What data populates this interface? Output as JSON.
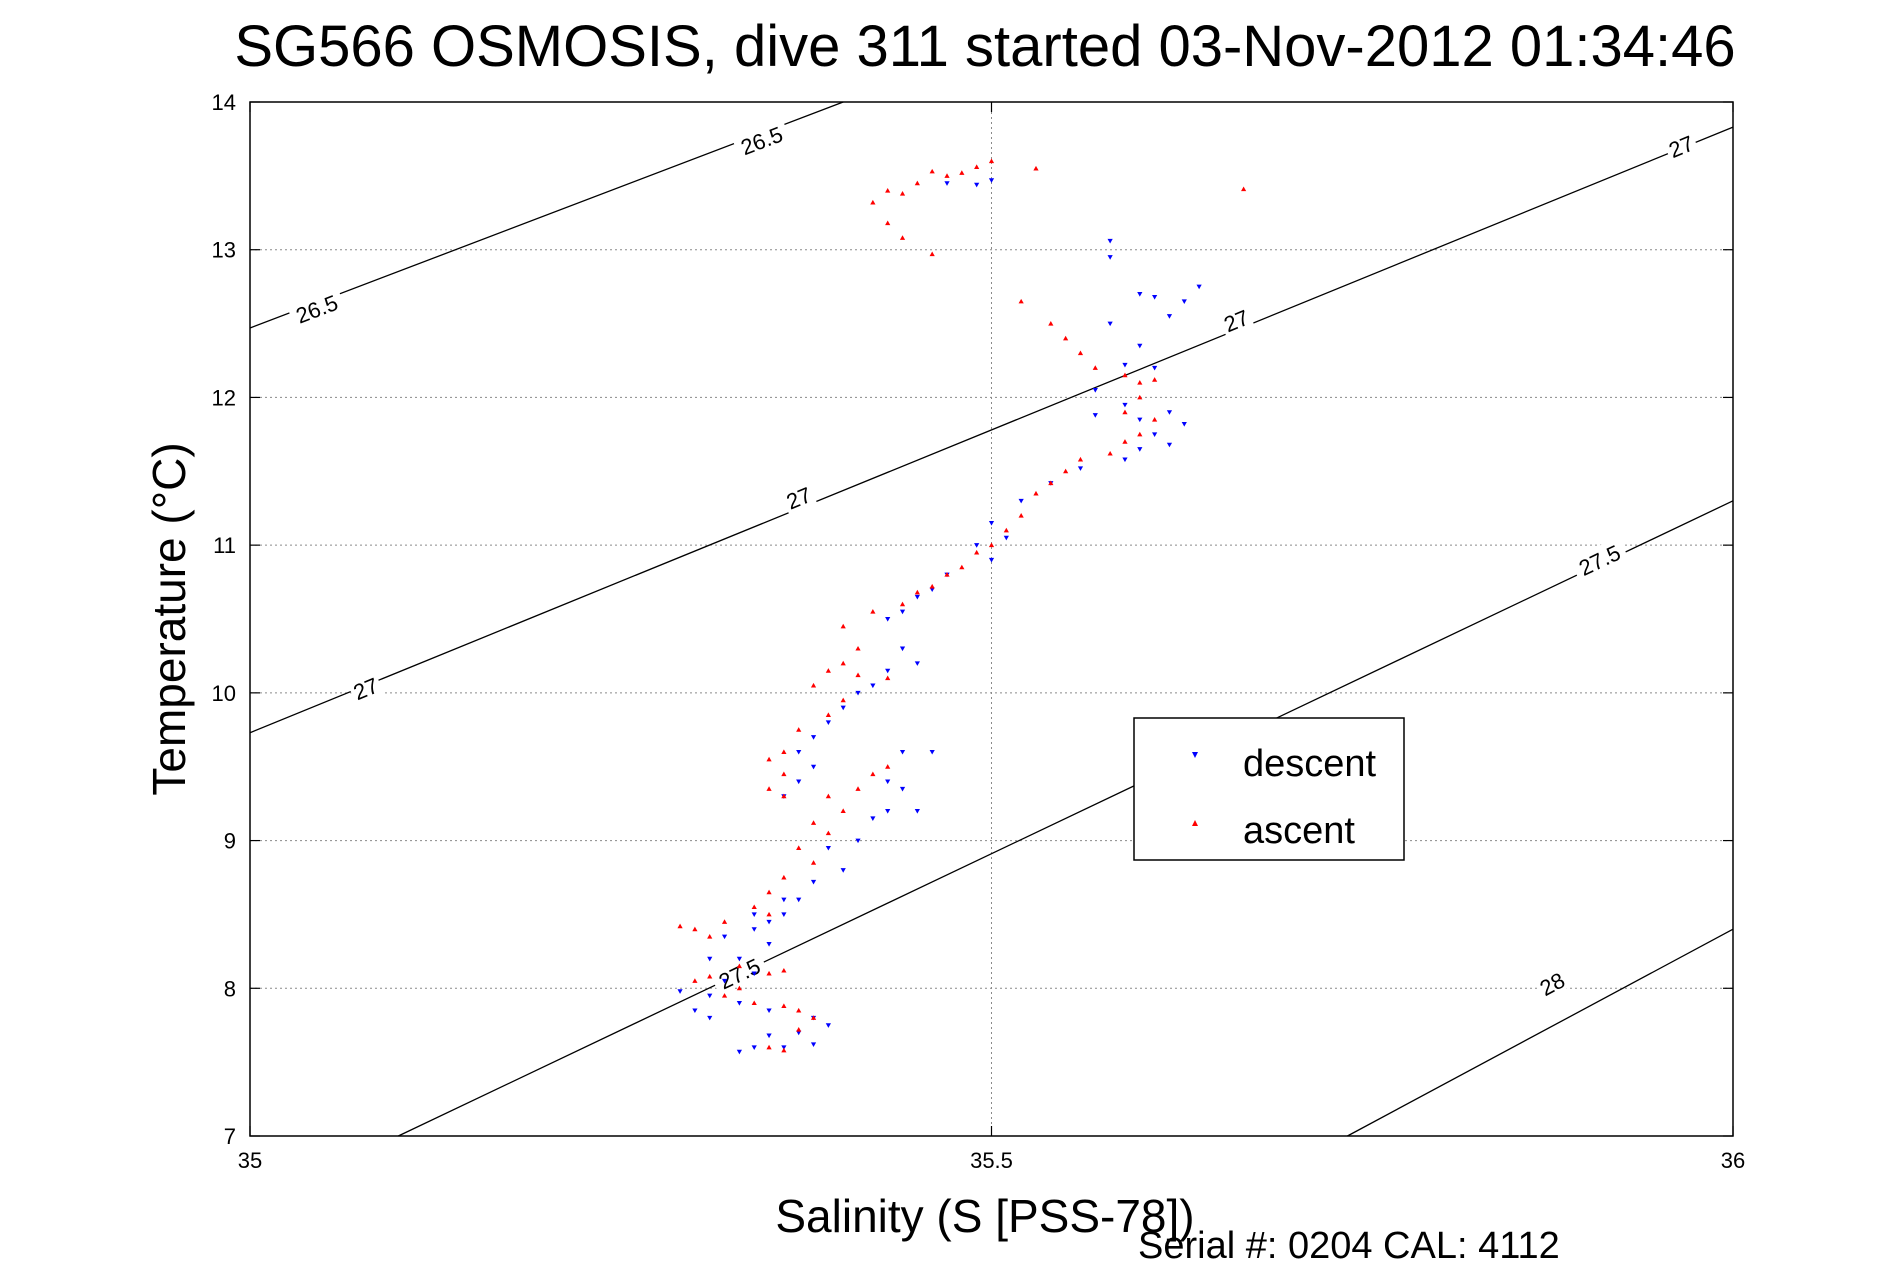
{
  "chart_data": {
    "type": "scatter",
    "title": "SG566 OSMOSIS, dive 311 started 03-Nov-2012 01:34:46",
    "xlabel": "Salinity (S [PSS-78])",
    "ylabel": "Temperature (°C)",
    "xlim": [
      35,
      36
    ],
    "ylim": [
      7,
      14
    ],
    "xticks": [
      35,
      35.5,
      36
    ],
    "xtick_labels": [
      "35",
      "35.5",
      "36"
    ],
    "yticks": [
      7,
      8,
      9,
      10,
      11,
      12,
      13,
      14
    ],
    "ytick_labels": [
      "7",
      "8",
      "9",
      "10",
      "11",
      "12",
      "13",
      "14"
    ],
    "grid": true,
    "legend_position": "center-right",
    "footer": "Serial #: 0204  CAL: 4112",
    "colors": {
      "descent": "#0000ff",
      "ascent": "#ff0000",
      "contour": "#000000",
      "grid": "#b0b0b0"
    },
    "contours": [
      {
        "level": "26.5",
        "points": [
          [
            35.0,
            12.47
          ],
          [
            35.4,
            14.0
          ]
        ],
        "labels": [
          {
            "text": "26.5",
            "x": 35.045,
            "y": 12.6
          },
          {
            "text": "26.5",
            "x": 35.345,
            "y": 13.74
          }
        ]
      },
      {
        "level": "27",
        "points": [
          [
            35.0,
            9.73
          ],
          [
            36.0,
            13.83
          ]
        ],
        "labels": [
          {
            "text": "27",
            "x": 35.078,
            "y": 10.03
          },
          {
            "text": "27",
            "x": 35.37,
            "y": 11.32
          },
          {
            "text": "27",
            "x": 35.665,
            "y": 12.52
          },
          {
            "text": "27",
            "x": 35.965,
            "y": 13.7
          }
        ]
      },
      {
        "level": "27.5",
        "points": [
          [
            35.1,
            7.0
          ],
          [
            36.0,
            11.3
          ]
        ],
        "labels": [
          {
            "text": "27.5",
            "x": 35.33,
            "y": 8.1
          },
          {
            "text": "27.5",
            "x": 35.91,
            "y": 10.9
          }
        ]
      },
      {
        "level": "28",
        "points": [
          [
            35.74,
            7.0
          ],
          [
            36.0,
            8.4
          ]
        ],
        "labels": [
          {
            "text": "28",
            "x": 35.878,
            "y": 8.03
          }
        ]
      }
    ],
    "series": [
      {
        "name": "descent",
        "marker": "triangle-down",
        "color": "#0000ff",
        "points": [
          [
            35.47,
            13.45
          ],
          [
            35.49,
            13.44
          ],
          [
            35.5,
            13.47
          ],
          [
            35.58,
            13.06
          ],
          [
            35.58,
            12.95
          ],
          [
            35.6,
            12.7
          ],
          [
            35.61,
            12.68
          ],
          [
            35.63,
            12.65
          ],
          [
            35.64,
            12.75
          ],
          [
            35.62,
            12.55
          ],
          [
            35.58,
            12.5
          ],
          [
            35.6,
            12.35
          ],
          [
            35.59,
            12.22
          ],
          [
            35.61,
            12.2
          ],
          [
            35.57,
            12.05
          ],
          [
            35.59,
            11.95
          ],
          [
            35.57,
            11.88
          ],
          [
            35.6,
            11.85
          ],
          [
            35.62,
            11.9
          ],
          [
            35.63,
            11.82
          ],
          [
            35.61,
            11.75
          ],
          [
            35.6,
            11.65
          ],
          [
            35.62,
            11.68
          ],
          [
            35.59,
            11.58
          ],
          [
            35.56,
            11.52
          ],
          [
            35.54,
            11.42
          ],
          [
            35.52,
            11.3
          ],
          [
            35.5,
            11.15
          ],
          [
            35.51,
            11.05
          ],
          [
            35.49,
            11.0
          ],
          [
            35.5,
            10.9
          ],
          [
            35.47,
            10.8
          ],
          [
            35.46,
            10.7
          ],
          [
            35.45,
            10.65
          ],
          [
            35.44,
            10.55
          ],
          [
            35.43,
            10.5
          ],
          [
            35.44,
            10.3
          ],
          [
            35.45,
            10.2
          ],
          [
            35.43,
            10.15
          ],
          [
            35.42,
            10.05
          ],
          [
            35.41,
            10.0
          ],
          [
            35.4,
            9.9
          ],
          [
            35.39,
            9.8
          ],
          [
            35.38,
            9.7
          ],
          [
            35.37,
            9.6
          ],
          [
            35.38,
            9.5
          ],
          [
            35.37,
            9.4
          ],
          [
            35.36,
            9.3
          ],
          [
            35.44,
            9.6
          ],
          [
            35.46,
            9.6
          ],
          [
            35.43,
            9.4
          ],
          [
            35.44,
            9.35
          ],
          [
            35.45,
            9.2
          ],
          [
            35.43,
            9.2
          ],
          [
            35.42,
            9.15
          ],
          [
            35.41,
            9.0
          ],
          [
            35.39,
            8.95
          ],
          [
            35.4,
            8.8
          ],
          [
            35.38,
            8.72
          ],
          [
            35.37,
            8.6
          ],
          [
            35.36,
            8.5
          ],
          [
            35.35,
            8.45
          ],
          [
            35.34,
            8.4
          ],
          [
            35.35,
            8.3
          ],
          [
            35.33,
            8.2
          ],
          [
            35.34,
            8.1
          ],
          [
            35.32,
            8.05
          ],
          [
            35.31,
            7.95
          ],
          [
            35.33,
            7.9
          ],
          [
            35.35,
            7.85
          ],
          [
            35.38,
            7.8
          ],
          [
            35.39,
            7.75
          ],
          [
            35.37,
            7.7
          ],
          [
            35.38,
            7.62
          ],
          [
            35.36,
            7.6
          ],
          [
            35.35,
            7.68
          ],
          [
            35.34,
            7.6
          ],
          [
            35.33,
            7.57
          ],
          [
            35.31,
            7.8
          ],
          [
            35.3,
            7.85
          ],
          [
            35.29,
            7.98
          ],
          [
            35.31,
            8.2
          ],
          [
            35.32,
            8.35
          ],
          [
            35.36,
            8.6
          ],
          [
            35.34,
            8.5
          ]
        ]
      },
      {
        "name": "ascent",
        "marker": "triangle-up",
        "color": "#ff0000",
        "points": [
          [
            35.47,
            13.5
          ],
          [
            35.48,
            13.52
          ],
          [
            35.49,
            13.56
          ],
          [
            35.5,
            13.6
          ],
          [
            35.46,
            13.53
          ],
          [
            35.44,
            13.38
          ],
          [
            35.45,
            13.45
          ],
          [
            35.43,
            13.4
          ],
          [
            35.42,
            13.32
          ],
          [
            35.43,
            13.18
          ],
          [
            35.44,
            13.08
          ],
          [
            35.46,
            12.97
          ],
          [
            35.53,
            13.55
          ],
          [
            35.67,
            13.41
          ],
          [
            35.52,
            12.65
          ],
          [
            35.54,
            12.5
          ],
          [
            35.55,
            12.4
          ],
          [
            35.56,
            12.3
          ],
          [
            35.57,
            12.2
          ],
          [
            35.59,
            12.15
          ],
          [
            35.6,
            12.1
          ],
          [
            35.61,
            12.12
          ],
          [
            35.6,
            12.0
          ],
          [
            35.59,
            11.9
          ],
          [
            35.61,
            11.85
          ],
          [
            35.6,
            11.75
          ],
          [
            35.59,
            11.7
          ],
          [
            35.58,
            11.62
          ],
          [
            35.56,
            11.58
          ],
          [
            35.55,
            11.5
          ],
          [
            35.54,
            11.42
          ],
          [
            35.53,
            11.35
          ],
          [
            35.52,
            11.2
          ],
          [
            35.51,
            11.1
          ],
          [
            35.5,
            11.0
          ],
          [
            35.49,
            10.95
          ],
          [
            35.48,
            10.85
          ],
          [
            35.47,
            10.8
          ],
          [
            35.46,
            10.72
          ],
          [
            35.45,
            10.68
          ],
          [
            35.44,
            10.6
          ],
          [
            35.42,
            10.55
          ],
          [
            35.4,
            10.45
          ],
          [
            35.41,
            10.3
          ],
          [
            35.4,
            10.2
          ],
          [
            35.39,
            10.15
          ],
          [
            35.41,
            10.12
          ],
          [
            35.43,
            10.1
          ],
          [
            35.38,
            10.05
          ],
          [
            35.4,
            9.95
          ],
          [
            35.39,
            9.85
          ],
          [
            35.37,
            9.75
          ],
          [
            35.36,
            9.6
          ],
          [
            35.35,
            9.55
          ],
          [
            35.36,
            9.45
          ],
          [
            35.35,
            9.35
          ],
          [
            35.36,
            9.3
          ],
          [
            35.42,
            9.45
          ],
          [
            35.43,
            9.5
          ],
          [
            35.41,
            9.35
          ],
          [
            35.39,
            9.3
          ],
          [
            35.4,
            9.2
          ],
          [
            35.38,
            9.12
          ],
          [
            35.39,
            9.05
          ],
          [
            35.37,
            8.95
          ],
          [
            35.38,
            8.85
          ],
          [
            35.36,
            8.75
          ],
          [
            35.35,
            8.65
          ],
          [
            35.34,
            8.55
          ],
          [
            35.35,
            8.5
          ],
          [
            35.32,
            8.45
          ],
          [
            35.3,
            8.4
          ],
          [
            35.31,
            8.35
          ],
          [
            35.29,
            8.42
          ],
          [
            35.33,
            8.15
          ],
          [
            35.35,
            8.1
          ],
          [
            35.36,
            8.12
          ],
          [
            35.33,
            8.0
          ],
          [
            35.32,
            7.95
          ],
          [
            35.34,
            7.9
          ],
          [
            35.36,
            7.88
          ],
          [
            35.37,
            7.85
          ],
          [
            35.38,
            7.8
          ],
          [
            35.37,
            7.72
          ],
          [
            35.35,
            7.6
          ],
          [
            35.36,
            7.58
          ],
          [
            35.3,
            8.05
          ],
          [
            35.31,
            8.08
          ]
        ]
      }
    ]
  }
}
